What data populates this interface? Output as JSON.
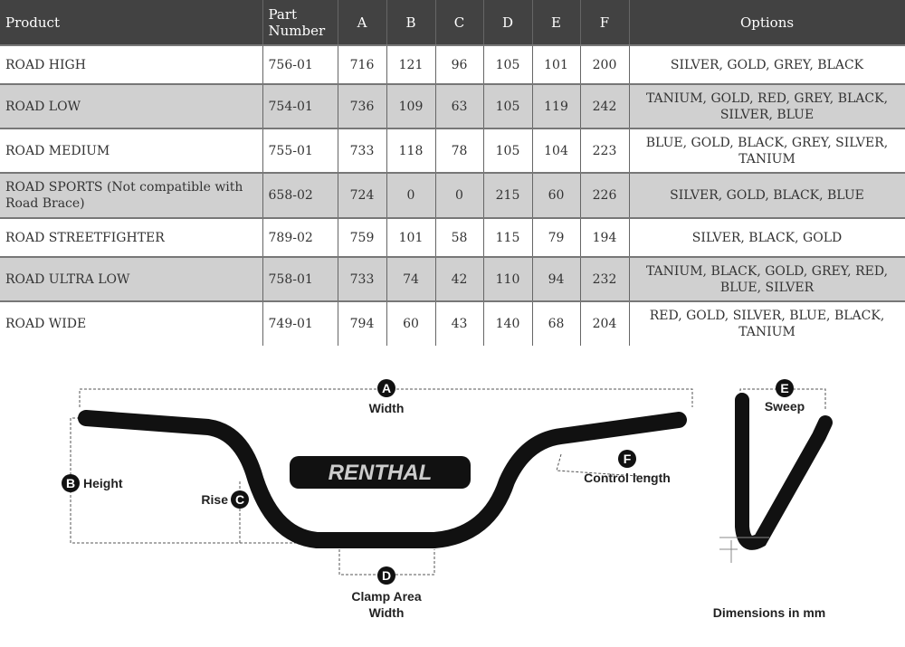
{
  "table": {
    "headers": [
      "Product",
      "Part Number",
      "A",
      "B",
      "C",
      "D",
      "E",
      "F",
      "Options"
    ],
    "rows": [
      {
        "product": "ROAD HIGH",
        "part": "756-01",
        "a": "716",
        "b": "121",
        "c": "96",
        "d": "105",
        "e": "101",
        "f": "200",
        "options": "SILVER, GOLD, GREY, BLACK"
      },
      {
        "product": "ROAD LOW",
        "part": "754-01",
        "a": "736",
        "b": "109",
        "c": "63",
        "d": "105",
        "e": "119",
        "f": "242",
        "options": "TANIUM, GOLD, RED, GREY, BLACK, SILVER, BLUE"
      },
      {
        "product": "ROAD MEDIUM",
        "part": "755-01",
        "a": "733",
        "b": "118",
        "c": "78",
        "d": "105",
        "e": "104",
        "f": "223",
        "options": "BLUE, GOLD, BLACK, GREY, SILVER, TANIUM"
      },
      {
        "product": "ROAD SPORTS (Not compatible with Road Brace)",
        "part": "658-02",
        "a": "724",
        "b": "0",
        "c": "0",
        "d": "215",
        "e": "60",
        "f": "226",
        "options": "SILVER, GOLD, BLACK, BLUE"
      },
      {
        "product": "ROAD STREETFIGHTER",
        "part": "789-02",
        "a": "759",
        "b": "101",
        "c": "58",
        "d": "115",
        "e": "79",
        "f": "194",
        "options": "SILVER, BLACK, GOLD"
      },
      {
        "product": "ROAD ULTRA LOW",
        "part": "758-01",
        "a": "733",
        "b": "74",
        "c": "42",
        "d": "110",
        "e": "94",
        "f": "232",
        "options": "TANIUM, BLACK, GOLD, GREY, RED, BLUE, SILVER"
      },
      {
        "product": "ROAD WIDE",
        "part": "749-01",
        "a": "794",
        "b": "60",
        "c": "43",
        "d": "140",
        "e": "68",
        "f": "204",
        "options": "RED, GOLD, SILVER, BLUE, BLACK, TANIUM"
      }
    ]
  },
  "diagram": {
    "a_letter": "A",
    "a_label": "Width",
    "b_letter": "B",
    "b_label": "Height",
    "c_letter": "C",
    "c_label": "Rise",
    "d_letter": "D",
    "d_label_1": "Clamp Area",
    "d_label_2": "Width",
    "e_letter": "E",
    "e_label": "Sweep",
    "f_letter": "F",
    "f_label": "Control length",
    "units": "Dimensions in mm",
    "logo": "RENTHAL"
  },
  "colors": {
    "header_bg": "#424242",
    "row_alt": "#d0d0d0"
  }
}
